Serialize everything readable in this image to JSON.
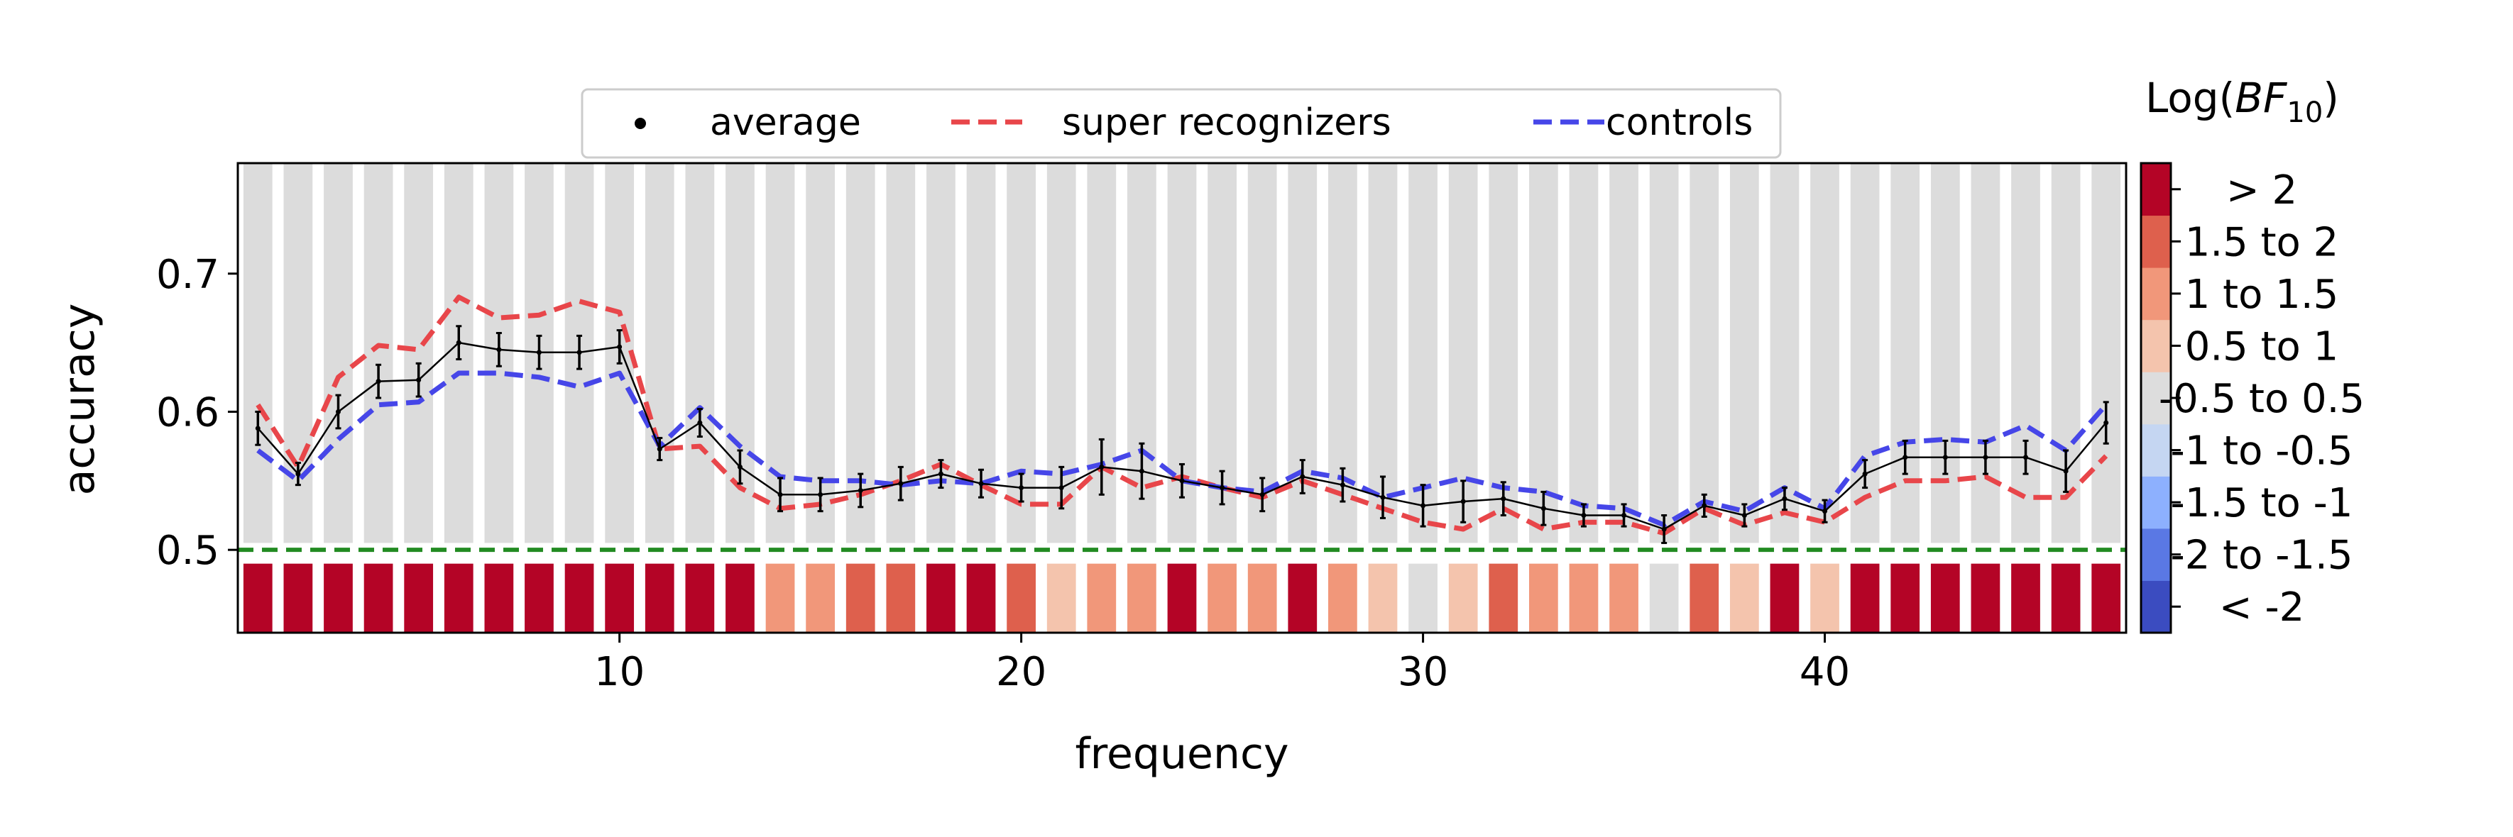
{
  "chart_data": {
    "type": "line",
    "xlabel": "frequency",
    "ylabel": "accuracy",
    "xlim": [
      0.5,
      47.5
    ],
    "ylim": [
      0.44,
      0.78
    ],
    "xticks": [
      10,
      20,
      30,
      40
    ],
    "yticks": [
      0.5,
      0.6,
      0.7
    ],
    "grid": false,
    "legend": {
      "placement": "top-center",
      "entries": [
        "average",
        "super recognizers",
        "controls"
      ]
    },
    "chance_level": {
      "value": 0.5,
      "color": "#228b22"
    },
    "x": [
      1,
      2,
      3,
      4,
      5,
      6,
      7,
      8,
      9,
      10,
      11,
      12,
      13,
      14,
      15,
      16,
      17,
      18,
      19,
      20,
      21,
      22,
      23,
      24,
      25,
      26,
      27,
      28,
      29,
      30,
      31,
      32,
      33,
      34,
      35,
      36,
      37,
      38,
      39,
      40,
      41,
      42,
      43,
      44,
      45,
      46,
      47
    ],
    "series": [
      {
        "name": "average",
        "color": "#000000",
        "style": "solid-with-errorbars",
        "values": [
          0.588,
          0.555,
          0.6,
          0.622,
          0.623,
          0.65,
          0.645,
          0.643,
          0.643,
          0.647,
          0.573,
          0.592,
          0.56,
          0.54,
          0.54,
          0.543,
          0.548,
          0.555,
          0.548,
          0.545,
          0.545,
          0.56,
          0.557,
          0.55,
          0.545,
          0.54,
          0.553,
          0.547,
          0.538,
          0.532,
          0.535,
          0.537,
          0.53,
          0.525,
          0.525,
          0.515,
          0.532,
          0.525,
          0.537,
          0.528,
          0.555,
          0.567,
          0.567,
          0.567,
          0.567,
          0.557,
          0.592
        ],
        "errors": [
          0.012,
          0.008,
          0.012,
          0.012,
          0.012,
          0.012,
          0.012,
          0.012,
          0.012,
          0.012,
          0.008,
          0.01,
          0.012,
          0.012,
          0.012,
          0.012,
          0.012,
          0.01,
          0.01,
          0.01,
          0.015,
          0.02,
          0.02,
          0.012,
          0.012,
          0.012,
          0.012,
          0.012,
          0.015,
          0.015,
          0.015,
          0.012,
          0.012,
          0.008,
          0.008,
          0.01,
          0.008,
          0.008,
          0.008,
          0.008,
          0.01,
          0.012,
          0.012,
          0.012,
          0.012,
          0.015,
          0.015
        ]
      },
      {
        "name": "super recognizers",
        "color": "#e8464a",
        "style": "dashed",
        "values": [
          0.605,
          0.56,
          0.625,
          0.648,
          0.645,
          0.683,
          0.668,
          0.67,
          0.68,
          0.672,
          0.573,
          0.575,
          0.545,
          0.53,
          0.533,
          0.54,
          0.55,
          0.562,
          0.547,
          0.533,
          0.533,
          0.56,
          0.545,
          0.553,
          0.545,
          0.538,
          0.55,
          0.54,
          0.53,
          0.52,
          0.515,
          0.53,
          0.515,
          0.52,
          0.52,
          0.512,
          0.53,
          0.518,
          0.527,
          0.52,
          0.538,
          0.55,
          0.55,
          0.553,
          0.538,
          0.538,
          0.568
        ]
      },
      {
        "name": "controls",
        "color": "#4646e8",
        "style": "dashed",
        "values": [
          0.572,
          0.55,
          0.58,
          0.605,
          0.607,
          0.628,
          0.628,
          0.625,
          0.618,
          0.628,
          0.575,
          0.603,
          0.575,
          0.553,
          0.55,
          0.55,
          0.547,
          0.55,
          0.548,
          0.557,
          0.555,
          0.562,
          0.572,
          0.55,
          0.545,
          0.542,
          0.557,
          0.552,
          0.538,
          0.545,
          0.552,
          0.545,
          0.542,
          0.532,
          0.53,
          0.518,
          0.535,
          0.528,
          0.545,
          0.53,
          0.568,
          0.578,
          0.58,
          0.578,
          0.59,
          0.572,
          0.605
        ]
      }
    ],
    "bayes_factor_bins": [
      ">2",
      ">2",
      ">2",
      ">2",
      ">2",
      ">2",
      ">2",
      ">2",
      ">2",
      ">2",
      ">2",
      ">2",
      ">2",
      "1 to 1.5",
      "1 to 1.5",
      "1.5 to 2",
      "1.5 to 2",
      ">2",
      ">2",
      "1.5 to 2",
      "0.5 to 1",
      "1 to 1.5",
      "1 to 1.5",
      ">2",
      "1 to 1.5",
      "1 to 1.5",
      ">2",
      "1 to 1.5",
      "0.5 to 1",
      "-0.5 to 0.5",
      "0.5 to 1",
      "1.5 to 2",
      "1 to 1.5",
      "1 to 1.5",
      "1 to 1.5",
      "-0.5 to 0.5",
      "1.5 to 2",
      "0.5 to 1",
      ">2",
      "0.5 to 1",
      ">2",
      ">2",
      ">2",
      ">2",
      ">2",
      ">2",
      ">2"
    ],
    "colorbar": {
      "title_prefix": "Log(",
      "title_var": "BF",
      "title_sub": "10",
      "title_suffix": ")",
      "labels": [
        "< -2",
        "-2 to -1.5",
        "-1.5 to -1",
        "-1 to -0.5",
        "-0.5 to 0.5",
        "0.5 to 1",
        "1 to 1.5",
        "1.5 to 2",
        "> 2"
      ],
      "colors": [
        "#3b4cc0",
        "#5a78e4",
        "#8db0fe",
        "#c5d6f2",
        "#dddddd",
        "#f4c4ad",
        "#f1977a",
        "#de604d",
        "#b40426"
      ],
      "bin_keys": [
        "<-2",
        "-2 to -1.5",
        "-1.5 to -1",
        "-1 to -0.5",
        "-0.5 to 0.5",
        "0.5 to 1",
        "1 to 1.5",
        "1.5 to 2",
        ">2"
      ]
    }
  }
}
